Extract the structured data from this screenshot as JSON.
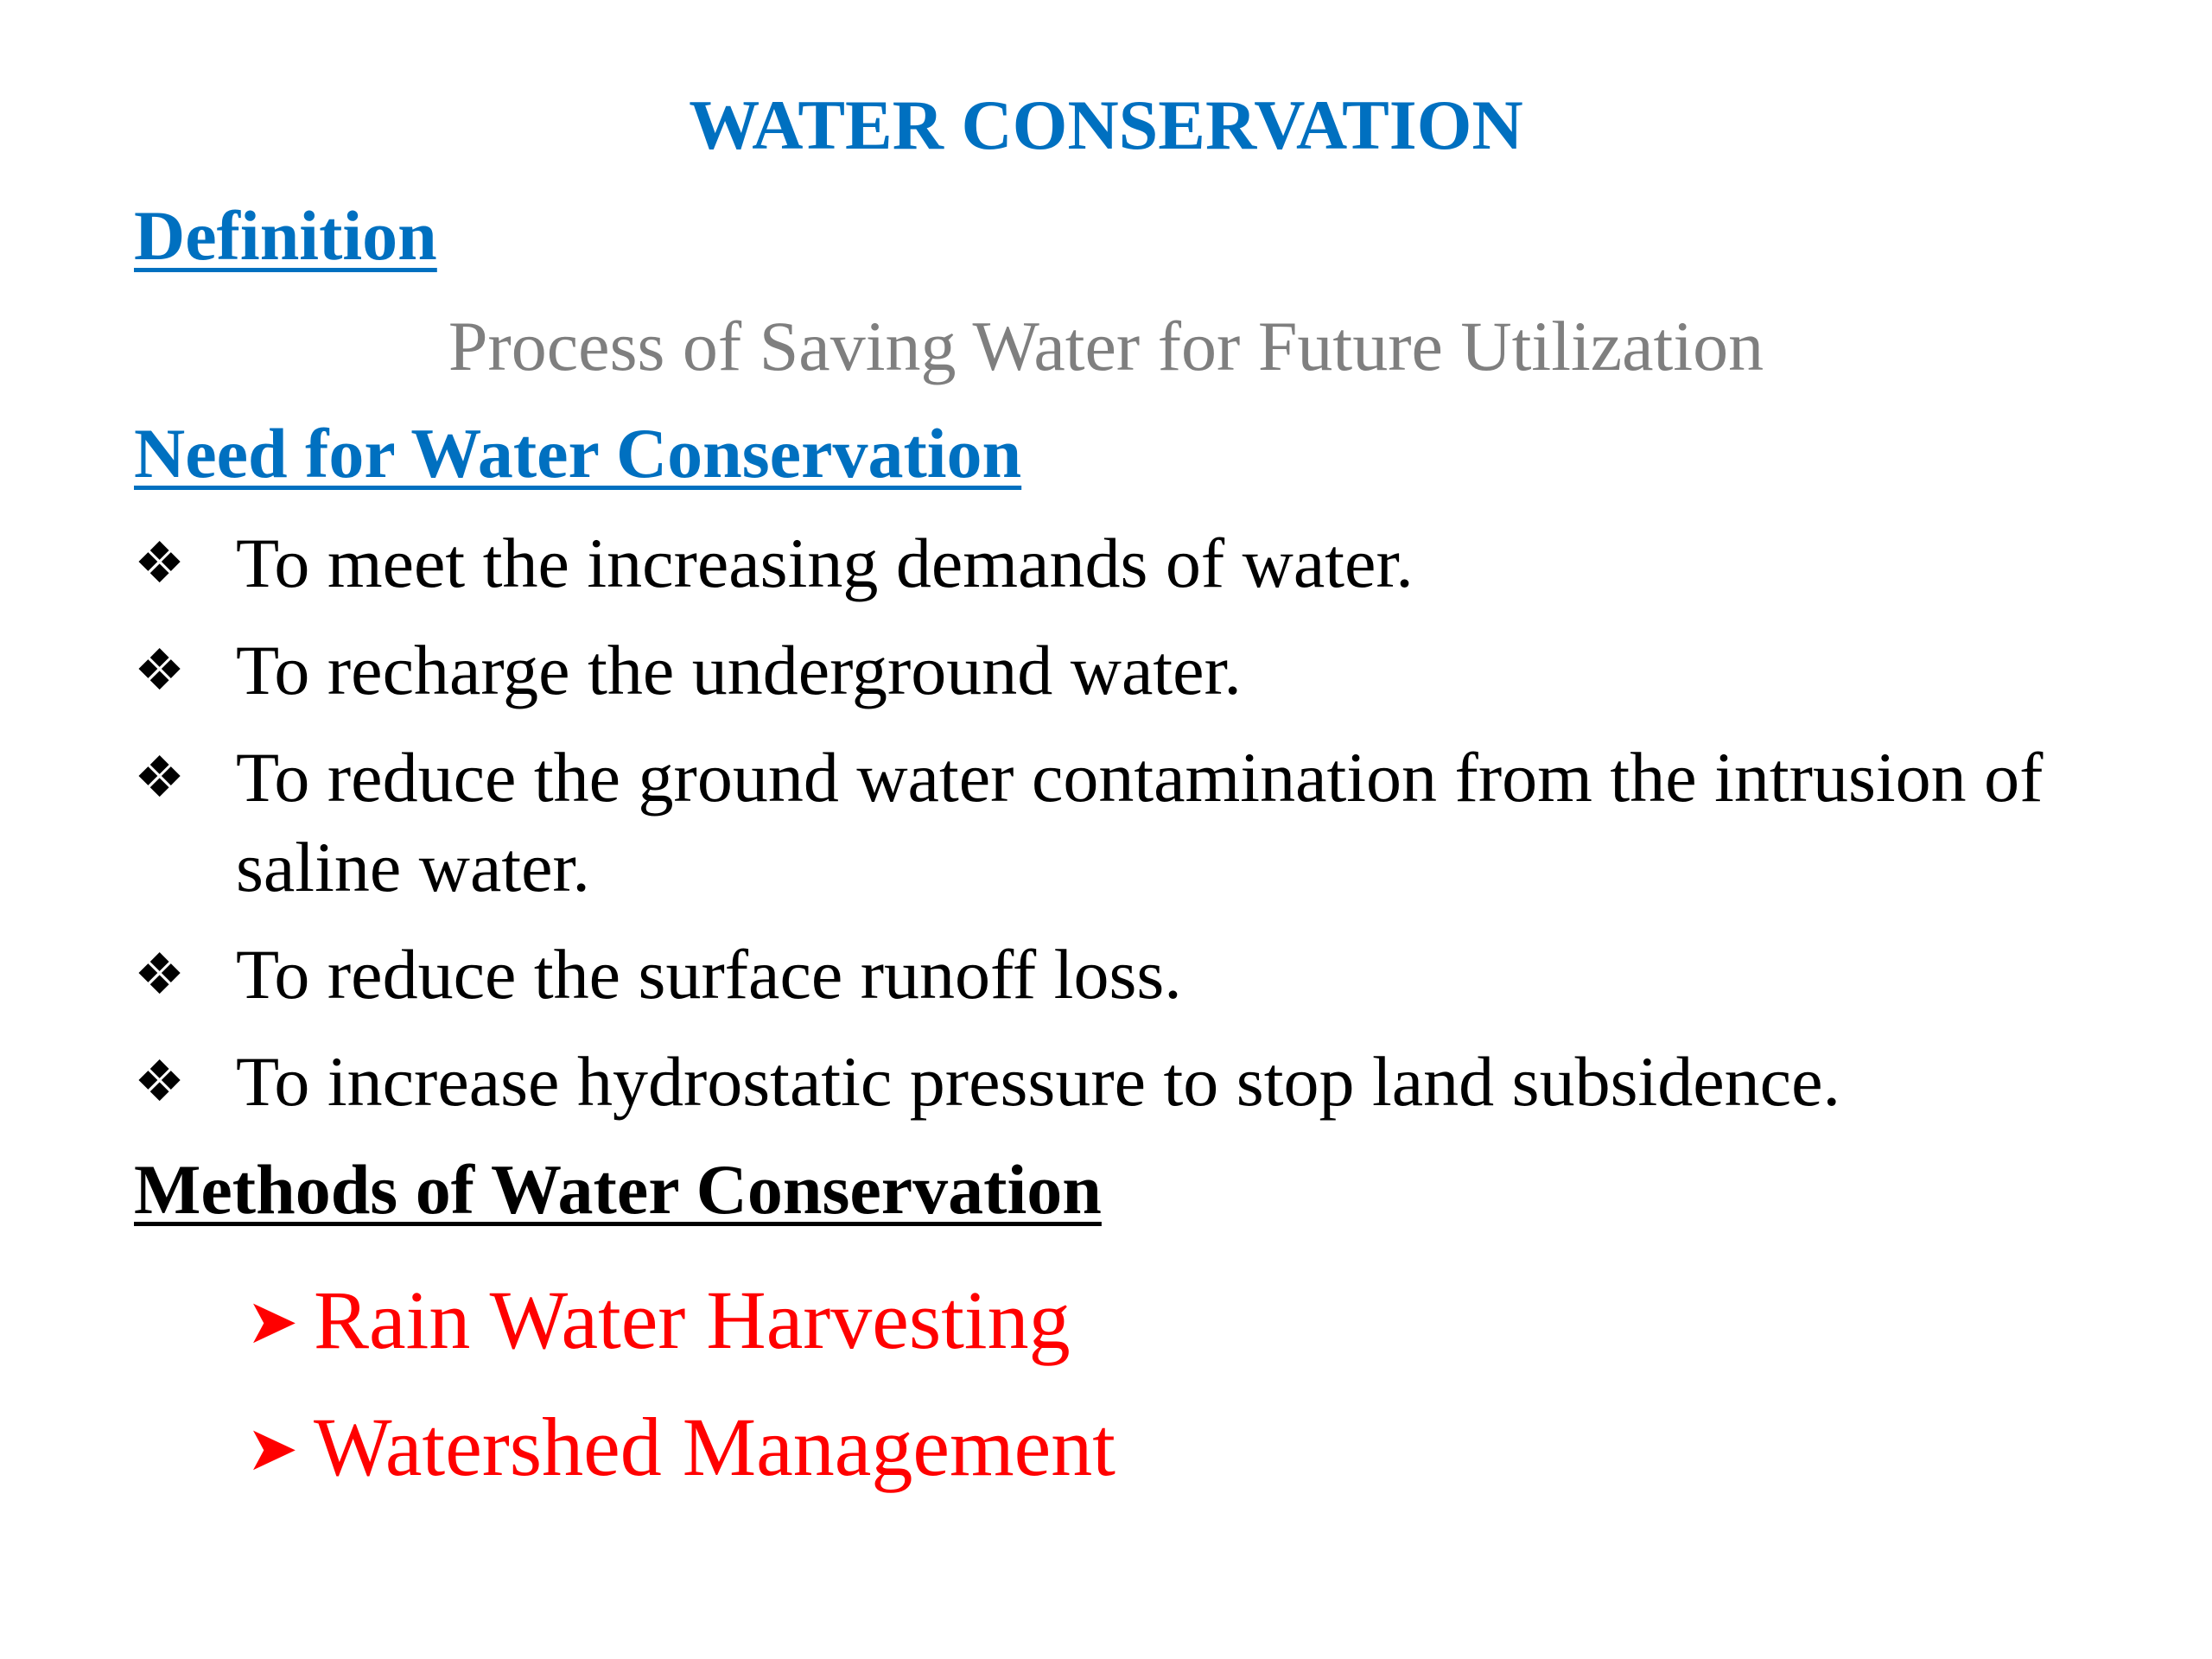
{
  "slide": {
    "title": "WATER CONSERVATION",
    "definition": {
      "heading": "Definition",
      "text": "Process of Saving Water for Future Utilization"
    },
    "need": {
      "heading": "Need for Water Conservation",
      "bullet_icon": "four-diamond-bullet-icon",
      "items": [
        "To meet the increasing demands of water.",
        "To recharge the underground water.",
        "To reduce the ground water contamination from the intrusion of saline water.",
        "To reduce the surface runoff loss.",
        "To increase hydrostatic pressure to stop land subsidence."
      ]
    },
    "methods": {
      "heading": "Methods of Water Conservation",
      "bullet_icon": "arrowhead-bullet-icon",
      "items": [
        "Rain Water Harvesting",
        "Watershed Management"
      ]
    },
    "colors": {
      "title": "#0070c0",
      "definition_text": "#7f7f7f",
      "methods_items": "#ff0000"
    }
  }
}
